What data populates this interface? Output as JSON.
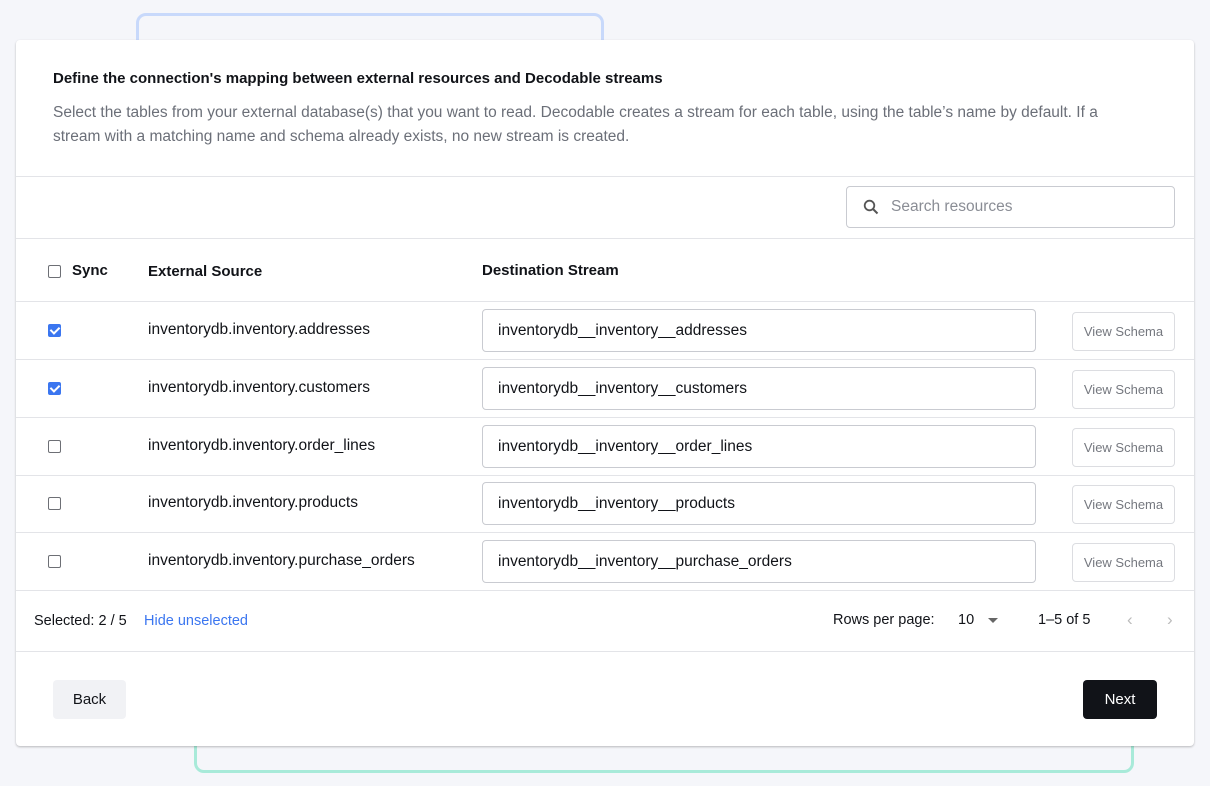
{
  "header": {
    "title": "Define the connection's mapping between external resources and Decodable streams",
    "description": "Select the tables from your external database(s) that you want to read. Decodable creates a stream for each table, using the table’s name by default. If a stream with a matching name and schema already exists, no new stream is created."
  },
  "search": {
    "placeholder": "Search resources",
    "icon": "search-icon"
  },
  "table": {
    "headers": {
      "sync": "Sync",
      "source": "External Source",
      "destination": "Destination Stream"
    },
    "rows": [
      {
        "checked": true,
        "source": "inventorydb.inventory.addresses",
        "destination": "inventorydb__inventory__addresses",
        "action": "View Schema"
      },
      {
        "checked": true,
        "source": "inventorydb.inventory.customers",
        "destination": "inventorydb__inventory__customers",
        "action": "View Schema"
      },
      {
        "checked": false,
        "source": "inventorydb.inventory.order_lines",
        "destination": "inventorydb__inventory__order_lines",
        "action": "View Schema"
      },
      {
        "checked": false,
        "source": "inventorydb.inventory.products",
        "destination": "inventorydb__inventory__products",
        "action": "View Schema"
      },
      {
        "checked": false,
        "source": "inventorydb.inventory.purchase_orders",
        "destination": "inventorydb__inventory__purchase_orders",
        "action": "View Schema"
      }
    ]
  },
  "footer": {
    "selected": "Selected: 2 / 5",
    "hide_unselected": "Hide unselected",
    "rows_per_page_label": "Rows per page:",
    "rows_per_page": "10",
    "range": "1–5 of 5"
  },
  "actions": {
    "back": "Back",
    "next": "Next"
  },
  "colors": {
    "accent": "#3b76f0",
    "primary_button": "#111318"
  }
}
